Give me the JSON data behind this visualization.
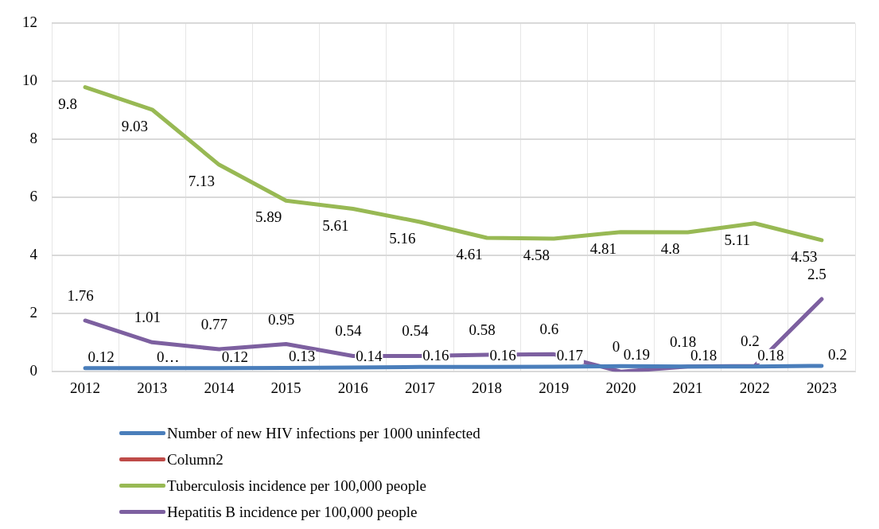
{
  "chart_data": {
    "type": "line",
    "categories": [
      "2012",
      "2013",
      "2014",
      "2015",
      "2016",
      "2017",
      "2018",
      "2019",
      "2020",
      "2021",
      "2022",
      "2023"
    ],
    "ylim": [
      0,
      12
    ],
    "yticks": [
      0,
      2,
      4,
      6,
      8,
      10,
      12
    ],
    "grid": true,
    "legend": "bottom",
    "data_labels": true,
    "marker": "none",
    "series": [
      {
        "name": "Number of new HIV infections per 1000 uninfected",
        "color": "#4a7ebb",
        "values": [
          0.12,
          0.12,
          0.12,
          0.13,
          0.14,
          0.16,
          0.16,
          0.17,
          0.19,
          0.18,
          0.18,
          0.2
        ],
        "value_labels": [
          "0.12",
          "0…",
          "0.12",
          "0.13",
          "0.14",
          "0.16",
          "0.16",
          "0.17",
          "0.19",
          "0.18",
          "0.18",
          "0.2"
        ]
      },
      {
        "name": "Column2",
        "color": "#be4b48",
        "values": [
          null,
          null,
          null,
          null,
          null,
          null,
          null,
          null,
          null,
          null,
          null,
          null
        ]
      },
      {
        "name": "Tuberculosis incidence per 100,000 people",
        "color": "#98b954",
        "values": [
          9.8,
          9.03,
          7.13,
          5.89,
          5.61,
          5.16,
          4.61,
          4.58,
          4.81,
          4.8,
          5.11,
          4.53
        ]
      },
      {
        "name": "Hepatitis B incidence per 100,000 people",
        "color": "#7d60a0",
        "values": [
          1.76,
          1.01,
          0.77,
          0.95,
          0.54,
          0.54,
          0.58,
          0.6,
          0,
          0.18,
          0.2,
          2.5
        ]
      }
    ]
  }
}
